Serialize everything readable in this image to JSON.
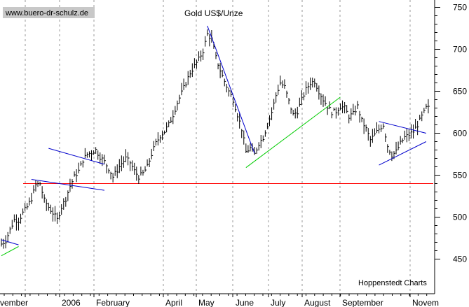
{
  "watermark": "www.buero-dr-schulz.de",
  "chart_data": {
    "type": "ohlc",
    "title": "Gold US$/Unze",
    "source": "Hoppenstedt Charts",
    "ylim": [
      440,
      760
    ],
    "y_ticks": [
      450,
      500,
      550,
      600,
      650,
      700,
      750
    ],
    "y_axis_side": "right",
    "grid": "vertical dashed at month starts",
    "x_labels": [
      "vember",
      "2006",
      "February",
      "April",
      "May",
      "June",
      "July",
      "August",
      "September",
      "Novem"
    ],
    "series_close": [
      [
        0,
        468
      ],
      [
        2,
        472
      ],
      [
        4,
        485
      ],
      [
        6,
        497
      ],
      [
        8,
        496
      ],
      [
        10,
        505
      ],
      [
        12,
        512
      ],
      [
        14,
        522
      ],
      [
        16,
        538
      ],
      [
        18,
        540
      ],
      [
        20,
        520
      ],
      [
        22,
        512
      ],
      [
        24,
        505
      ],
      [
        26,
        497
      ],
      [
        28,
        512
      ],
      [
        30,
        522
      ],
      [
        32,
        537
      ],
      [
        34,
        548
      ],
      [
        36,
        555
      ],
      [
        38,
        568
      ],
      [
        40,
        575
      ],
      [
        42,
        577
      ],
      [
        44,
        580
      ],
      [
        46,
        572
      ],
      [
        48,
        566
      ],
      [
        50,
        558
      ],
      [
        52,
        548
      ],
      [
        54,
        556
      ],
      [
        56,
        564
      ],
      [
        58,
        570
      ],
      [
        60,
        565
      ],
      [
        62,
        555
      ],
      [
        64,
        548
      ],
      [
        66,
        552
      ],
      [
        68,
        560
      ],
      [
        70,
        575
      ],
      [
        72,
        588
      ],
      [
        74,
        597
      ],
      [
        76,
        602
      ],
      [
        78,
        610
      ],
      [
        80,
        622
      ],
      [
        82,
        636
      ],
      [
        84,
        648
      ],
      [
        86,
        660
      ],
      [
        88,
        672
      ],
      [
        90,
        680
      ],
      [
        92,
        688
      ],
      [
        94,
        698
      ],
      [
        96,
        718
      ],
      [
        98,
        712
      ],
      [
        100,
        690
      ],
      [
        102,
        675
      ],
      [
        104,
        662
      ],
      [
        106,
        650
      ],
      [
        108,
        640
      ],
      [
        110,
        622
      ],
      [
        112,
        605
      ],
      [
        114,
        578
      ],
      [
        116,
        582
      ],
      [
        118,
        575
      ],
      [
        120,
        588
      ],
      [
        122,
        595
      ],
      [
        124,
        610
      ],
      [
        126,
        625
      ],
      [
        128,
        645
      ],
      [
        130,
        660
      ],
      [
        132,
        655
      ],
      [
        134,
        638
      ],
      [
        136,
        622
      ],
      [
        138,
        626
      ],
      [
        140,
        640
      ],
      [
        142,
        652
      ],
      [
        144,
        660
      ],
      [
        146,
        662
      ],
      [
        148,
        650
      ],
      [
        150,
        640
      ],
      [
        152,
        632
      ],
      [
        154,
        625
      ],
      [
        156,
        626
      ],
      [
        158,
        632
      ],
      [
        160,
        630
      ],
      [
        162,
        620
      ],
      [
        164,
        623
      ],
      [
        166,
        632
      ],
      [
        168,
        615
      ],
      [
        170,
        605
      ],
      [
        172,
        592
      ],
      [
        174,
        598
      ],
      [
        176,
        605
      ],
      [
        178,
        610
      ],
      [
        180,
        585
      ],
      [
        182,
        574
      ],
      [
        184,
        578
      ],
      [
        186,
        588
      ],
      [
        188,
        595
      ],
      [
        190,
        598
      ],
      [
        192,
        602
      ],
      [
        194,
        610
      ],
      [
        196,
        620
      ],
      [
        198,
        630
      ]
    ],
    "trendlines": [
      {
        "color": "#0000cc",
        "points": [
          [
            22,
            582
          ],
          [
            48,
            563
          ]
        ]
      },
      {
        "color": "#0000cc",
        "points": [
          [
            14,
            545
          ],
          [
            48,
            532
          ]
        ]
      },
      {
        "color": "#0000cc",
        "points": [
          [
            96,
            728
          ],
          [
            118,
            576
          ]
        ]
      },
      {
        "color": "#00cc00",
        "points": [
          [
            114,
            559
          ],
          [
            158,
            643
          ]
        ]
      },
      {
        "color": "#0000cc",
        "points": [
          [
            176,
            614
          ],
          [
            198,
            600
          ]
        ]
      },
      {
        "color": "#0000cc",
        "points": [
          [
            176,
            562
          ],
          [
            198,
            590
          ]
        ]
      },
      {
        "color": "#0000cc",
        "points": [
          [
            0,
            473
          ],
          [
            8,
            467
          ]
        ]
      },
      {
        "color": "#00cc00",
        "points": [
          [
            0,
            454
          ],
          [
            8,
            465
          ]
        ]
      }
    ],
    "support_line": {
      "color": "#ff0000",
      "y": 540
    }
  }
}
